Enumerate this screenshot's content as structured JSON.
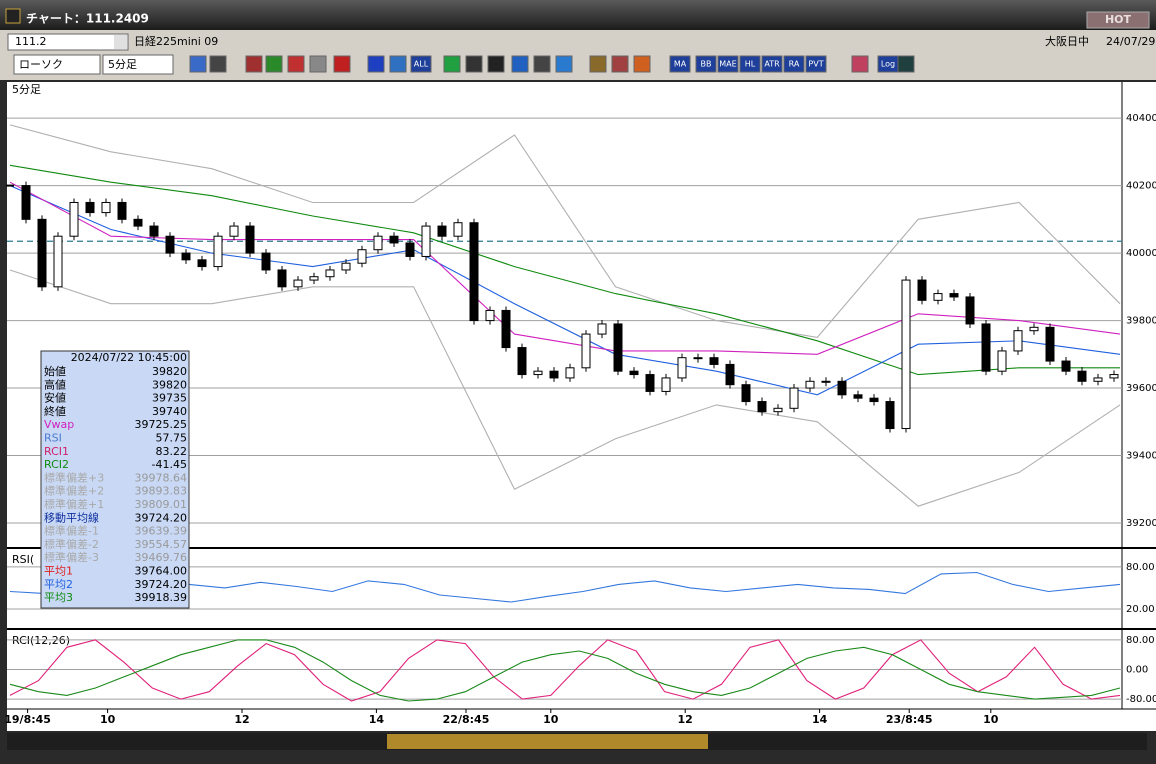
{
  "window": {
    "title": "チャート：111.2409",
    "hot_button": "HOT"
  },
  "symbol_bar": {
    "code": "111.2",
    "name": "日経225mini 09",
    "session": "大阪日中",
    "date": "24/07/29"
  },
  "toolbar": {
    "chart_style": "ローソク",
    "interval": "5分足",
    "buttons": [
      "ALL",
      "MA",
      "BB",
      "MAE",
      "HL",
      "ATR",
      "RA",
      "PVT",
      "Log"
    ]
  },
  "info_panel": {
    "datetime": "2024/07/22  10:45:00",
    "rows": [
      {
        "label": "始値",
        "value": "39820",
        "color": "#000000"
      },
      {
        "label": "高値",
        "value": "39820",
        "color": "#000000"
      },
      {
        "label": "安値",
        "value": "39735",
        "color": "#000000"
      },
      {
        "label": "終値",
        "value": "39740",
        "color": "#000000"
      },
      {
        "label": "Vwap",
        "value": "39725.25",
        "color": "#d020c0"
      },
      {
        "label": "RSI",
        "value": "57.75",
        "color": "#4a7ad0"
      },
      {
        "label": "RCI1",
        "value": "83.22",
        "color": "#d0206a"
      },
      {
        "label": "RCI2",
        "value": "-41.45",
        "color": "#108a10"
      },
      {
        "label": "標準偏差+3",
        "value": "39978.64",
        "color": "#a8a8a8"
      },
      {
        "label": "標準偏差+2",
        "value": "39893.83",
        "color": "#a8a8a8"
      },
      {
        "label": "標準偏差+1",
        "value": "39809.01",
        "color": "#a8a8a8"
      },
      {
        "label": "移動平均線",
        "value": "39724.20",
        "color": "#1030a0"
      },
      {
        "label": "標準偏差-1",
        "value": "39639.39",
        "color": "#a8a8a8"
      },
      {
        "label": "標準偏差-2",
        "value": "39554.57",
        "color": "#a8a8a8"
      },
      {
        "label": "標準偏差-3",
        "value": "39469.76",
        "color": "#a8a8a8"
      },
      {
        "label": "平均1",
        "value": "39764.00",
        "color": "#e02020"
      },
      {
        "label": "平均2",
        "value": "39724.20",
        "color": "#2060e0"
      },
      {
        "label": "平均3",
        "value": "39918.39",
        "color": "#108a10"
      }
    ]
  },
  "chart_data": [
    {
      "type": "candlestick",
      "title": "5分足",
      "values": [
        40200,
        40100,
        39900,
        40050,
        40150,
        40120,
        40150,
        40100,
        40080,
        40050,
        40000,
        39980,
        39960,
        40050,
        40080,
        40000,
        39950,
        39900,
        39920,
        39930,
        39950,
        39970,
        40010,
        40050,
        40030,
        39990,
        40080,
        40050,
        40090,
        39800,
        39830,
        39720,
        39640,
        39650,
        39630,
        39660,
        39760,
        39790,
        39650,
        39640,
        39590,
        39630,
        39690,
        39690,
        39670,
        39610,
        39560,
        39530,
        39540,
        39600,
        39620,
        39620,
        39580,
        39570,
        39560,
        39480,
        39920,
        39860,
        39880,
        39870,
        39790,
        39650,
        39710,
        39770,
        39780,
        39680,
        39650,
        39620,
        39630,
        39640
      ],
      "up_color": "#ffffff",
      "down_color": "#000000",
      "xlim": [
        0,
        69
      ],
      "xticks": [
        {
          "value": 1.1,
          "label": "19/8:45"
        },
        {
          "value": 6.1,
          "label": "10"
        },
        {
          "value": 14.5,
          "label": "12"
        },
        {
          "value": 22.9,
          "label": "14"
        },
        {
          "value": 28.5,
          "label": "22/8:45"
        },
        {
          "value": 33.8,
          "label": "10"
        },
        {
          "value": 42.2,
          "label": "12"
        },
        {
          "value": 50.6,
          "label": "14"
        },
        {
          "value": 56.2,
          "label": "23/8:45"
        },
        {
          "value": 61.3,
          "label": "10"
        }
      ],
      "ylim": [
        39126,
        40507
      ],
      "yticks": [
        39200,
        39400,
        39600,
        39800,
        40000,
        40200,
        40400
      ],
      "grid": true,
      "reference_line": 40035,
      "series": [
        {
          "name": "標準偏差+2",
          "color": "#b0b0b0",
          "values": [
            40380,
            40300,
            40250,
            40150,
            40150,
            40350,
            39900,
            39800,
            39750,
            40100,
            40150,
            39850
          ]
        },
        {
          "name": "標準偏差-2",
          "color": "#b0b0b0",
          "values": [
            39950,
            39850,
            39850,
            39900,
            39900,
            39300,
            39450,
            39550,
            39500,
            39250,
            39350,
            39550
          ]
        },
        {
          "name": "平均3",
          "color": "#108a10",
          "values": [
            40260,
            40210,
            40170,
            40110,
            40060,
            39960,
            39880,
            39820,
            39740,
            39640,
            39660,
            39660
          ]
        },
        {
          "name": "平均2",
          "color": "#2060e0",
          "values": [
            40200,
            40070,
            40000,
            39960,
            40010,
            39850,
            39700,
            39650,
            39580,
            39730,
            39740,
            39700
          ]
        },
        {
          "name": "Vwap",
          "color": "#d020c0",
          "values": [
            40210,
            40050,
            40040,
            40040,
            40040,
            39760,
            39710,
            39710,
            39700,
            39820,
            39800,
            39760
          ]
        }
      ]
    },
    {
      "type": "line",
      "title": "RSI(",
      "ylim": [
        -7,
        104
      ],
      "yticks": [
        {
          "value": 20,
          "label": "20.00"
        },
        {
          "value": 80,
          "label": "80.00"
        }
      ],
      "grid": true,
      "series": [
        {
          "name": "RSI",
          "color": "#3377dd",
          "values": [
            45,
            42,
            48,
            55,
            60,
            55,
            50,
            58,
            52,
            45,
            60,
            55,
            40,
            35,
            30,
            38,
            45,
            55,
            60,
            50,
            45,
            50,
            55,
            50,
            48,
            42,
            70,
            72,
            55,
            45,
            50,
            55
          ]
        }
      ]
    },
    {
      "type": "line",
      "title": "RCI(12,26)",
      "ylim": [
        -104,
        104
      ],
      "yticks": [
        {
          "value": -80,
          "label": "-80.00"
        },
        {
          "value": 0,
          "label": "0.00"
        },
        {
          "value": 80,
          "label": "80.00"
        }
      ],
      "grid": true,
      "series": [
        {
          "name": "RCI1",
          "color": "#e0207a",
          "values": [
            -70,
            -30,
            60,
            80,
            20,
            -50,
            -80,
            -60,
            10,
            70,
            40,
            -40,
            -85,
            -60,
            30,
            80,
            70,
            -20,
            -80,
            -70,
            10,
            80,
            50,
            -60,
            -80,
            -40,
            60,
            80,
            -30,
            -80,
            -50,
            40,
            80,
            -10,
            -60,
            -20,
            60,
            -40,
            -80,
            -70
          ]
        },
        {
          "name": "RCI2",
          "color": "#1a8a1a",
          "values": [
            -40,
            -60,
            -70,
            -50,
            -20,
            10,
            40,
            60,
            80,
            80,
            60,
            20,
            -30,
            -70,
            -85,
            -80,
            -60,
            -20,
            20,
            40,
            50,
            30,
            -10,
            -40,
            -60,
            -70,
            -50,
            -10,
            30,
            50,
            60,
            40,
            0,
            -40,
            -60,
            -70,
            -80,
            -75,
            -70,
            -50
          ]
        }
      ]
    }
  ]
}
